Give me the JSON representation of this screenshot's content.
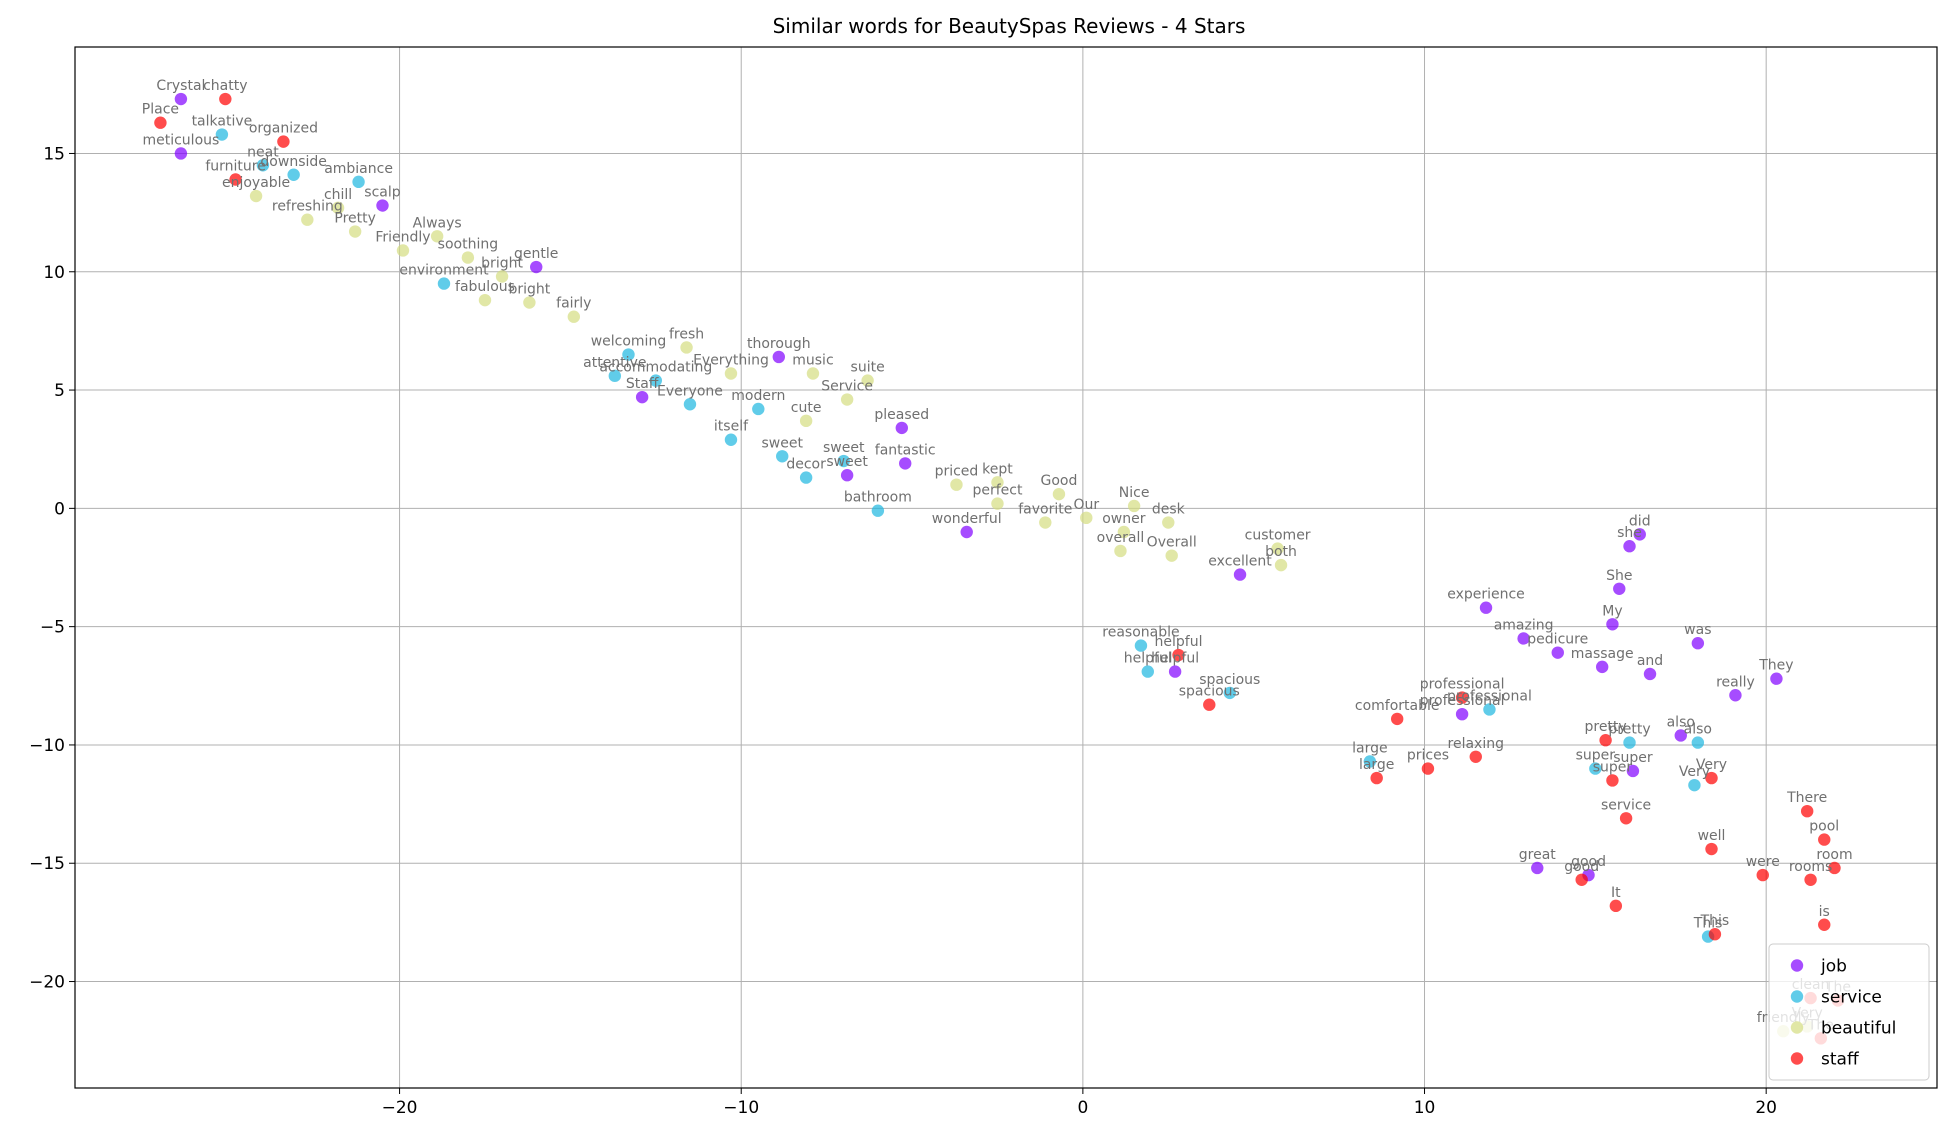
{
  "chart_data": {
    "type": "scatter",
    "title": "Similar words for BeautySpas Reviews - 4 Stars",
    "xlabel": "",
    "ylabel": "",
    "xlim": [
      -29.5,
      25
    ],
    "ylim": [
      -24.5,
      19.5
    ],
    "xticks": [
      -20,
      -10,
      0,
      10,
      20
    ],
    "yticks": [
      -20,
      -15,
      -10,
      -5,
      0,
      5,
      10,
      15
    ],
    "xtick_labels": [
      "−20",
      "−10",
      "0",
      "10",
      "20"
    ],
    "ytick_labels": [
      "−20",
      "−15",
      "−10",
      "−5",
      "0",
      "5",
      "10",
      "15"
    ],
    "grid": true,
    "legend_position": "bottom-right",
    "series": [
      {
        "name": "job",
        "color": "#8000ff",
        "points": [
          {
            "x": -26.4,
            "y": 17.3,
            "label": "Crystal"
          },
          {
            "x": -26.4,
            "y": 15.0,
            "label": "meticulous"
          },
          {
            "x": -20.5,
            "y": 12.8,
            "label": "scalp"
          },
          {
            "x": -16.0,
            "y": 10.2,
            "label": "gentle"
          },
          {
            "x": -8.9,
            "y": 6.4,
            "label": "thorough"
          },
          {
            "x": -12.9,
            "y": 4.7,
            "label": "Staff"
          },
          {
            "x": -5.3,
            "y": 3.4,
            "label": "pleased"
          },
          {
            "x": -5.2,
            "y": 1.9,
            "label": "fantastic"
          },
          {
            "x": -6.9,
            "y": 1.4,
            "label": "sweet"
          },
          {
            "x": -3.4,
            "y": -1.0,
            "label": "wonderful"
          },
          {
            "x": 4.6,
            "y": -2.8,
            "label": "excellent"
          },
          {
            "x": 16.3,
            "y": -1.1,
            "label": "did"
          },
          {
            "x": 16.0,
            "y": -1.6,
            "label": "she"
          },
          {
            "x": 15.7,
            "y": -3.4,
            "label": "She"
          },
          {
            "x": 11.8,
            "y": -4.2,
            "label": "experience"
          },
          {
            "x": 15.5,
            "y": -4.9,
            "label": "My"
          },
          {
            "x": 12.9,
            "y": -5.5,
            "label": "amazing"
          },
          {
            "x": 13.9,
            "y": -6.1,
            "label": "pedicure"
          },
          {
            "x": 18.0,
            "y": -5.7,
            "label": "was"
          },
          {
            "x": 15.2,
            "y": -6.7,
            "label": "massage"
          },
          {
            "x": 16.6,
            "y": -7.0,
            "label": "and"
          },
          {
            "x": 20.3,
            "y": -7.2,
            "label": "They"
          },
          {
            "x": 2.7,
            "y": -6.9,
            "label": "helpful"
          },
          {
            "x": 11.1,
            "y": -8.7,
            "label": "professional"
          },
          {
            "x": 19.1,
            "y": -7.9,
            "label": "really"
          },
          {
            "x": 17.5,
            "y": -9.6,
            "label": "also"
          },
          {
            "x": 16.1,
            "y": -11.1,
            "label": "super"
          },
          {
            "x": 13.3,
            "y": -15.2,
            "label": "great"
          },
          {
            "x": 14.8,
            "y": -15.5,
            "label": "good"
          }
        ]
      },
      {
        "name": "service",
        "color": "#1cb7e0",
        "points": [
          {
            "x": -25.2,
            "y": 15.8,
            "label": "talkative"
          },
          {
            "x": -24.0,
            "y": 14.5,
            "label": "neat"
          },
          {
            "x": -23.1,
            "y": 14.1,
            "label": "downside"
          },
          {
            "x": -21.2,
            "y": 13.8,
            "label": "ambiance"
          },
          {
            "x": -18.7,
            "y": 9.5,
            "label": "environment"
          },
          {
            "x": -13.3,
            "y": 6.5,
            "label": "welcoming"
          },
          {
            "x": -13.7,
            "y": 5.6,
            "label": "attentive"
          },
          {
            "x": -12.5,
            "y": 5.4,
            "label": "accommodating"
          },
          {
            "x": -11.5,
            "y": 4.4,
            "label": "Everyone"
          },
          {
            "x": -9.5,
            "y": 4.2,
            "label": "modern"
          },
          {
            "x": -10.3,
            "y": 2.9,
            "label": "itself"
          },
          {
            "x": -8.8,
            "y": 2.2,
            "label": "sweet"
          },
          {
            "x": -7.0,
            "y": 2.0,
            "label": "sweet"
          },
          {
            "x": -8.1,
            "y": 1.3,
            "label": "decor"
          },
          {
            "x": -6.0,
            "y": -0.1,
            "label": "bathroom"
          },
          {
            "x": 1.7,
            "y": -5.8,
            "label": "reasonable"
          },
          {
            "x": 1.9,
            "y": -6.9,
            "label": "helpful"
          },
          {
            "x": 4.3,
            "y": -7.8,
            "label": "spacious"
          },
          {
            "x": 11.9,
            "y": -8.5,
            "label": "professional"
          },
          {
            "x": 16.0,
            "y": -9.9,
            "label": "pretty"
          },
          {
            "x": 18.0,
            "y": -9.9,
            "label": "also"
          },
          {
            "x": 8.4,
            "y": -10.7,
            "label": "large"
          },
          {
            "x": 15.0,
            "y": -11.0,
            "label": "super"
          },
          {
            "x": 17.9,
            "y": -11.7,
            "label": "Very"
          },
          {
            "x": 18.3,
            "y": -18.1,
            "label": "This"
          }
        ]
      },
      {
        "name": "beautiful",
        "color": "#d4dd80",
        "points": [
          {
            "x": -24.2,
            "y": 13.2,
            "label": "enjoyable"
          },
          {
            "x": -21.8,
            "y": 12.7,
            "label": "chill"
          },
          {
            "x": -22.7,
            "y": 12.2,
            "label": "refreshing"
          },
          {
            "x": -21.3,
            "y": 11.7,
            "label": "Pretty"
          },
          {
            "x": -18.9,
            "y": 11.5,
            "label": "Always"
          },
          {
            "x": -19.9,
            "y": 10.9,
            "label": "Friendly"
          },
          {
            "x": -18.0,
            "y": 10.6,
            "label": "soothing"
          },
          {
            "x": -17.0,
            "y": 9.8,
            "label": "bright"
          },
          {
            "x": -17.5,
            "y": 8.8,
            "label": "fabulous"
          },
          {
            "x": -16.2,
            "y": 8.7,
            "label": "bright"
          },
          {
            "x": -14.9,
            "y": 8.1,
            "label": "fairly"
          },
          {
            "x": -11.6,
            "y": 6.8,
            "label": "fresh"
          },
          {
            "x": -10.3,
            "y": 5.7,
            "label": "Everything"
          },
          {
            "x": -7.9,
            "y": 5.7,
            "label": "music"
          },
          {
            "x": -6.3,
            "y": 5.4,
            "label": "suite"
          },
          {
            "x": -6.9,
            "y": 4.6,
            "label": "Service"
          },
          {
            "x": -8.1,
            "y": 3.7,
            "label": "cute"
          },
          {
            "x": -3.7,
            "y": 1.0,
            "label": "priced"
          },
          {
            "x": -2.5,
            "y": 1.1,
            "label": "kept"
          },
          {
            "x": -0.7,
            "y": 0.6,
            "label": "Good"
          },
          {
            "x": -2.5,
            "y": 0.2,
            "label": "perfect"
          },
          {
            "x": 1.5,
            "y": 0.1,
            "label": "Nice"
          },
          {
            "x": 0.1,
            "y": -0.4,
            "label": "Our"
          },
          {
            "x": -1.1,
            "y": -0.6,
            "label": "favorite"
          },
          {
            "x": 2.5,
            "y": -0.6,
            "label": "desk"
          },
          {
            "x": 1.2,
            "y": -1.0,
            "label": "owner"
          },
          {
            "x": 5.7,
            "y": -1.7,
            "label": "customer"
          },
          {
            "x": 1.1,
            "y": -1.8,
            "label": "overall"
          },
          {
            "x": 2.6,
            "y": -2.0,
            "label": "Overall"
          },
          {
            "x": 5.8,
            "y": -2.4,
            "label": "both"
          },
          {
            "x": 20.5,
            "y": -22.1,
            "label": "friendly"
          },
          {
            "x": 21.2,
            "y": -21.9,
            "label": "Very"
          }
        ]
      },
      {
        "name": "staff",
        "color": "#ff0000",
        "points": [
          {
            "x": -25.1,
            "y": 17.3,
            "label": "chatty"
          },
          {
            "x": -27.0,
            "y": 16.3,
            "label": "Place"
          },
          {
            "x": -23.4,
            "y": 15.5,
            "label": "organized"
          },
          {
            "x": -24.8,
            "y": 13.9,
            "label": "furniture"
          },
          {
            "x": 2.8,
            "y": -6.2,
            "label": "helpful"
          },
          {
            "x": 3.7,
            "y": -8.3,
            "label": "spacious"
          },
          {
            "x": 11.1,
            "y": -8.0,
            "label": "professional"
          },
          {
            "x": 9.2,
            "y": -8.9,
            "label": "comfortable"
          },
          {
            "x": 11.5,
            "y": -10.5,
            "label": "relaxing"
          },
          {
            "x": 10.1,
            "y": -11.0,
            "label": "prices"
          },
          {
            "x": 8.6,
            "y": -11.4,
            "label": "large"
          },
          {
            "x": 15.3,
            "y": -9.8,
            "label": "pretty"
          },
          {
            "x": 15.5,
            "y": -11.5,
            "label": "super"
          },
          {
            "x": 18.4,
            "y": -11.4,
            "label": "Very"
          },
          {
            "x": 15.9,
            "y": -13.1,
            "label": "service"
          },
          {
            "x": 21.2,
            "y": -12.8,
            "label": "There"
          },
          {
            "x": 21.7,
            "y": -14.0,
            "label": "pool"
          },
          {
            "x": 18.4,
            "y": -14.4,
            "label": "well"
          },
          {
            "x": 19.9,
            "y": -15.5,
            "label": "were"
          },
          {
            "x": 22.0,
            "y": -15.2,
            "label": "room"
          },
          {
            "x": 21.3,
            "y": -15.7,
            "label": "rooms"
          },
          {
            "x": 14.6,
            "y": -15.7,
            "label": "good"
          },
          {
            "x": 15.6,
            "y": -16.8,
            "label": "It"
          },
          {
            "x": 21.7,
            "y": -17.6,
            "label": "is"
          },
          {
            "x": 18.5,
            "y": -18.0,
            "label": "This"
          },
          {
            "x": 21.3,
            "y": -20.7,
            "label": "clean"
          },
          {
            "x": 22.1,
            "y": -20.8,
            "label": "The"
          },
          {
            "x": 21.6,
            "y": -22.4,
            "label": "The"
          }
        ]
      }
    ]
  }
}
